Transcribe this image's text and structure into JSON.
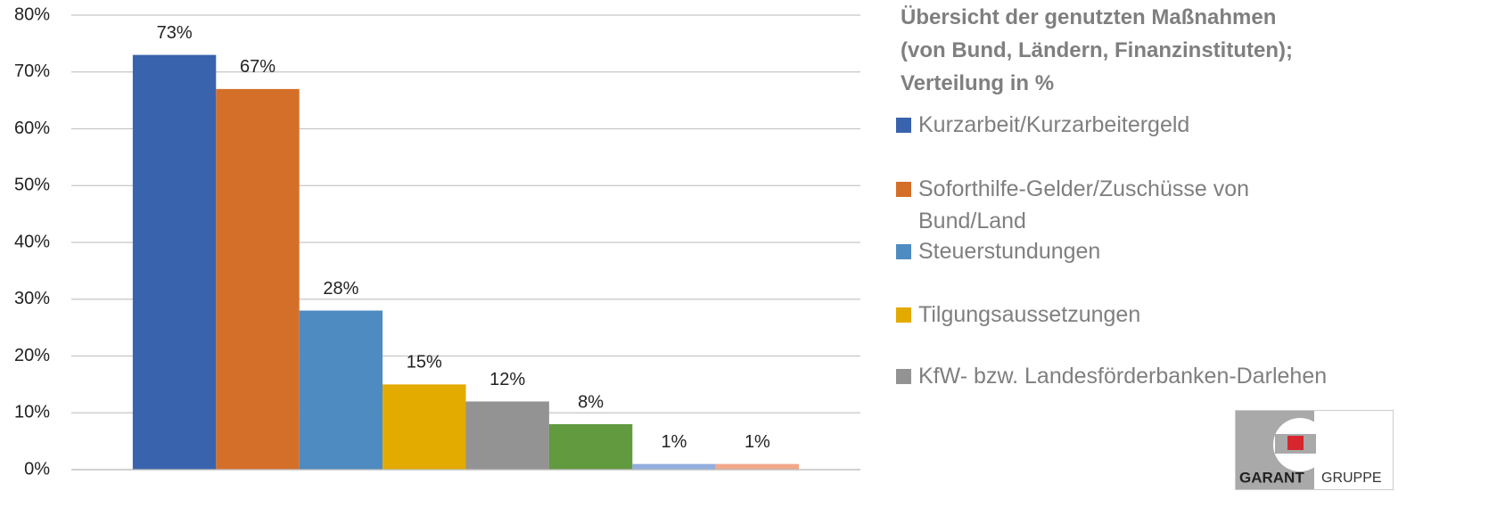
{
  "chart_data": {
    "type": "bar",
    "title": [
      "Übersicht der genutzten Maßnahmen",
      "(von Bund, Ländern, Finanzinstituten);",
      "Verteilung in %"
    ],
    "series": [
      {
        "name": "Kurzarbeit/Kurzarbeitergeld",
        "color": "#3a63ad",
        "values": [
          73
        ],
        "value_labels": [
          "73%"
        ]
      },
      {
        "name": "Soforthilfe-Gelder/Zuschüsse von Bund/Land",
        "color": "#d46f2a",
        "values": [
          67
        ],
        "value_labels": [
          "67%"
        ]
      },
      {
        "name": "Steuerstundungen",
        "color": "#4e8bc0",
        "values": [
          28
        ],
        "value_labels": [
          "28%"
        ]
      },
      {
        "name": "Tilgungsaussetzungen",
        "color": "#e3aa00",
        "values": [
          15
        ],
        "value_labels": [
          "15%"
        ]
      },
      {
        "name": "KfW- bzw. Landesförderbanken-Darlehen",
        "color": "#939393",
        "values": [
          12
        ],
        "value_labels": [
          "12%"
        ]
      },
      {
        "color": "#629a40",
        "values": [
          8
        ],
        "value_labels": [
          "8%"
        ]
      },
      {
        "color": "#92aedd",
        "values": [
          1
        ],
        "value_labels": [
          "1%"
        ]
      },
      {
        "color": "#f1a98b",
        "values": [
          1
        ],
        "value_labels": [
          "1%"
        ]
      }
    ],
    "ylim": [
      0,
      80
    ],
    "yticks": [
      {
        "value": 0,
        "label": "0%"
      },
      {
        "value": 10,
        "label": "10%"
      },
      {
        "value": 20,
        "label": "20%"
      },
      {
        "value": 30,
        "label": "30%"
      },
      {
        "value": 40,
        "label": "40%"
      },
      {
        "value": 50,
        "label": "50%"
      },
      {
        "value": 60,
        "label": "60%"
      },
      {
        "value": 70,
        "label": "70%"
      },
      {
        "value": 80,
        "label": "80%"
      }
    ],
    "grid": true,
    "legend": "right"
  },
  "logo": {
    "brand": "GARANT",
    "group": "GRUPPE"
  }
}
